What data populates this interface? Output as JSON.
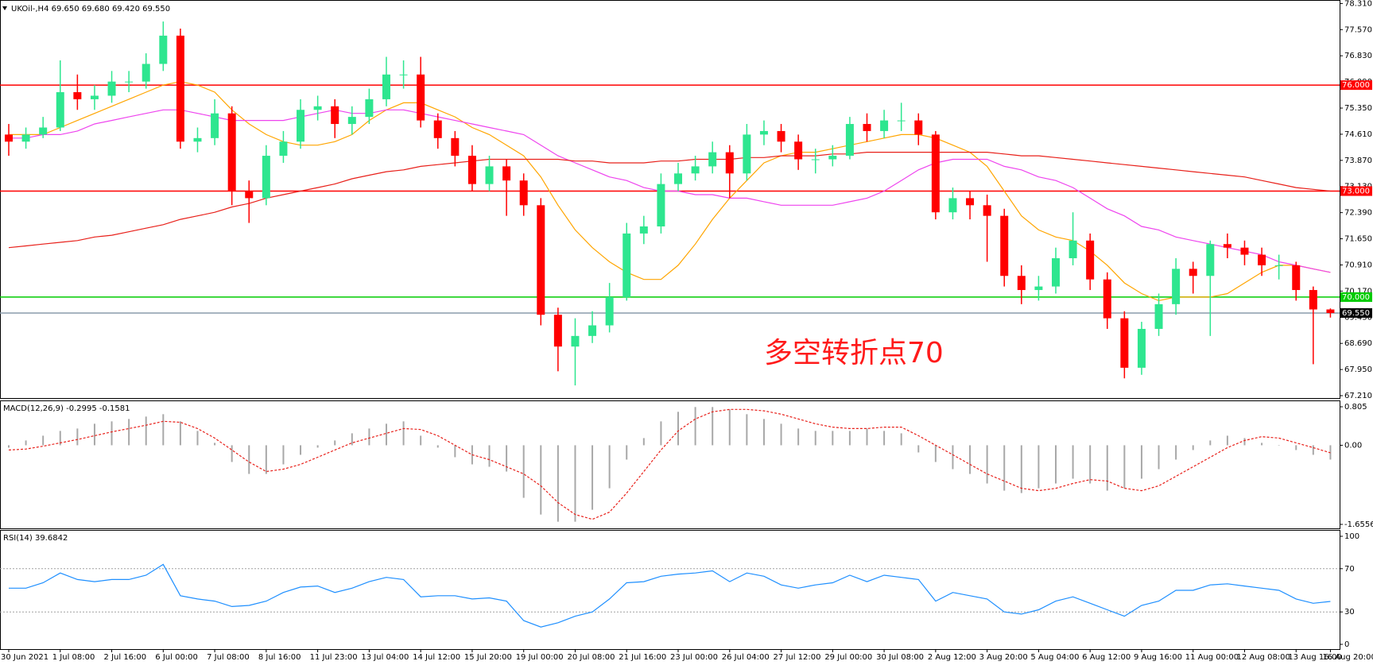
{
  "chart_data": [
    {
      "type": "candlestick",
      "title": "UKOil-,H4 69.650 69.680 69.420 69.550",
      "annotation": "多空转折点70",
      "annotation_color": "#ff1a1a",
      "up_color": "#2ee68f",
      "down_color": "#ff0000",
      "categories": [
        "30 Jun 2021",
        null,
        null,
        "1 Jul 08:00",
        null,
        null,
        "2 Jul 16:00",
        null,
        null,
        "6 Jul 00:00",
        null,
        null,
        "7 Jul 08:00",
        null,
        null,
        "8 Jul 16:00",
        null,
        null,
        "11 Jul 23:00",
        null,
        null,
        "13 Jul 04:00",
        null,
        null,
        "14 Jul 12:00",
        null,
        null,
        "15 Jul 20:00",
        null,
        null,
        "19 Jul 00:00",
        null,
        null,
        "20 Jul 08:00",
        null,
        null,
        "21 Jul 16:00",
        null,
        null,
        "23 Jul 00:00",
        null,
        null,
        "26 Jul 04:00",
        null,
        null,
        "27 Jul 12:00",
        null,
        null,
        "29 Jul 00:00",
        null,
        null,
        "30 Jul 08:00",
        null,
        null,
        "2 Aug 12:00",
        null,
        null,
        "3 Aug 20:00",
        null,
        null,
        "5 Aug 04:00",
        null,
        null,
        "6 Aug 12:00",
        null,
        null,
        "9 Aug 16:00",
        null,
        null,
        "11 Aug 00:00",
        null,
        null,
        "12 Aug 08:00",
        null,
        null,
        "13 Aug 16:00",
        null,
        "16 Aug 20:00"
      ],
      "open": [
        74.6,
        74.4,
        74.6,
        74.8,
        75.8,
        75.6,
        75.7,
        76.1,
        76.1,
        76.6,
        77.4,
        74.4,
        74.5,
        75.2,
        73.0,
        72.8,
        74.0,
        74.4,
        75.3,
        75.4,
        74.9,
        75.1,
        75.6,
        76.3,
        76.3,
        75.0,
        74.5,
        74.0,
        73.2,
        73.7,
        73.3,
        72.6,
        69.5,
        68.6,
        68.9,
        69.2,
        70.0,
        71.8,
        72.0,
        73.2,
        73.5,
        73.7,
        74.1,
        73.5,
        74.6,
        74.7,
        74.4,
        73.9,
        73.9,
        74.0,
        74.9,
        74.7,
        75.0,
        75.0,
        74.6,
        72.4,
        72.8,
        72.6,
        72.3,
        70.6,
        70.2,
        70.3,
        71.1,
        71.6,
        70.5,
        69.4,
        68.0,
        69.1,
        69.8,
        70.8,
        70.6,
        71.5,
        71.4,
        71.2,
        70.9,
        70.9,
        70.2,
        69.65
      ],
      "high": [
        74.9,
        74.8,
        75.1,
        76.7,
        76.3,
        76.0,
        76.4,
        76.4,
        76.9,
        77.8,
        77.6,
        74.8,
        75.6,
        75.4,
        73.3,
        74.3,
        74.7,
        75.6,
        75.7,
        75.6,
        75.4,
        75.9,
        76.8,
        76.7,
        76.8,
        75.2,
        74.7,
        74.3,
        74.0,
        73.9,
        73.5,
        72.8,
        69.7,
        69.4,
        69.6,
        70.4,
        72.1,
        72.3,
        73.5,
        73.8,
        74.0,
        74.4,
        74.3,
        74.9,
        75.0,
        74.9,
        74.6,
        74.2,
        74.3,
        75.1,
        75.2,
        75.3,
        75.5,
        75.2,
        74.7,
        73.1,
        73.0,
        72.9,
        72.5,
        70.9,
        70.6,
        71.4,
        72.4,
        71.8,
        70.7,
        69.6,
        69.3,
        70.1,
        71.1,
        71.0,
        71.6,
        71.8,
        71.6,
        71.4,
        71.2,
        71.0,
        70.3,
        69.68
      ],
      "low": [
        74.0,
        74.2,
        74.5,
        74.7,
        75.3,
        75.3,
        75.5,
        75.8,
        75.9,
        76.4,
        74.2,
        74.1,
        74.3,
        72.6,
        72.1,
        72.6,
        73.8,
        74.2,
        75.0,
        74.5,
        74.6,
        74.9,
        75.4,
        75.9,
        74.8,
        74.2,
        73.7,
        73.0,
        73.0,
        72.3,
        72.3,
        69.2,
        67.9,
        67.5,
        68.7,
        69.0,
        69.9,
        71.5,
        71.8,
        73.0,
        73.3,
        73.5,
        72.8,
        73.3,
        74.3,
        74.1,
        73.6,
        73.5,
        73.7,
        73.9,
        74.4,
        74.5,
        74.7,
        74.3,
        72.2,
        72.2,
        72.2,
        71.0,
        70.3,
        69.8,
        69.9,
        70.1,
        70.9,
        70.2,
        69.1,
        67.7,
        67.8,
        68.9,
        69.5,
        70.1,
        68.9,
        71.1,
        70.9,
        70.6,
        70.5,
        69.9,
        68.1,
        69.42
      ],
      "close": [
        74.4,
        74.6,
        74.8,
        75.8,
        75.6,
        75.7,
        76.1,
        76.1,
        76.6,
        77.4,
        74.4,
        74.5,
        75.2,
        73.0,
        72.8,
        74.0,
        74.4,
        75.3,
        75.4,
        74.9,
        75.1,
        75.6,
        76.3,
        76.3,
        75.0,
        74.5,
        74.0,
        73.2,
        73.7,
        73.3,
        72.6,
        69.5,
        68.6,
        68.9,
        69.2,
        70.0,
        71.8,
        72.0,
        73.2,
        73.5,
        73.7,
        74.1,
        73.5,
        74.6,
        74.7,
        74.4,
        73.9,
        73.9,
        74.0,
        74.9,
        74.7,
        75.0,
        75.0,
        74.6,
        72.4,
        72.8,
        72.6,
        72.3,
        70.6,
        70.2,
        70.3,
        71.1,
        71.6,
        70.5,
        69.4,
        68.0,
        69.1,
        69.8,
        70.8,
        70.6,
        71.5,
        71.4,
        71.2,
        70.9,
        70.9,
        70.2,
        69.65,
        69.55
      ],
      "lines": [
        {
          "color": "#ffa500",
          "values": [
            74.6,
            74.6,
            74.6,
            74.8,
            75.0,
            75.2,
            75.4,
            75.6,
            75.8,
            76.0,
            76.1,
            76.0,
            75.8,
            75.3,
            74.9,
            74.6,
            74.4,
            74.3,
            74.3,
            74.4,
            74.6,
            75.0,
            75.3,
            75.5,
            75.5,
            75.3,
            75.1,
            74.8,
            74.6,
            74.3,
            74.0,
            73.4,
            72.6,
            71.9,
            71.4,
            71.0,
            70.7,
            70.5,
            70.5,
            70.9,
            71.5,
            72.2,
            72.8,
            73.3,
            73.8,
            74.0,
            74.1,
            74.1,
            74.2,
            74.3,
            74.4,
            74.5,
            74.6,
            74.6,
            74.5,
            74.3,
            74.1,
            73.7,
            73.0,
            72.3,
            71.9,
            71.7,
            71.6,
            71.3,
            70.9,
            70.4,
            70.1,
            69.9,
            70.0,
            70.0,
            70.0,
            70.1,
            70.4,
            70.7,
            70.9,
            70.9,
            70.8,
            70.7
          ]
        },
        {
          "color": "#ee44ee",
          "values": [
            74.5,
            74.5,
            74.6,
            74.6,
            74.7,
            74.9,
            75.0,
            75.1,
            75.2,
            75.3,
            75.3,
            75.2,
            75.1,
            75.0,
            75.0,
            75.0,
            75.0,
            75.1,
            75.2,
            75.3,
            75.2,
            75.2,
            75.3,
            75.3,
            75.2,
            75.1,
            75.0,
            74.9,
            74.8,
            74.7,
            74.6,
            74.3,
            74.0,
            73.8,
            73.6,
            73.4,
            73.3,
            73.1,
            73.0,
            73.0,
            72.9,
            72.9,
            72.8,
            72.8,
            72.7,
            72.6,
            72.6,
            72.6,
            72.6,
            72.7,
            72.8,
            73.0,
            73.3,
            73.6,
            73.8,
            73.9,
            73.9,
            73.9,
            73.7,
            73.6,
            73.4,
            73.3,
            73.1,
            72.8,
            72.5,
            72.3,
            72.0,
            71.9,
            71.7,
            71.6,
            71.5,
            71.4,
            71.3,
            71.2,
            71.0,
            70.9,
            70.8,
            70.7
          ]
        },
        {
          "color": "#e8201a",
          "values": [
            71.4,
            71.45,
            71.5,
            71.55,
            71.6,
            71.7,
            71.75,
            71.85,
            71.95,
            72.05,
            72.2,
            72.3,
            72.4,
            72.55,
            72.65,
            72.8,
            72.9,
            73.0,
            73.1,
            73.2,
            73.35,
            73.45,
            73.55,
            73.6,
            73.7,
            73.75,
            73.8,
            73.85,
            73.9,
            73.9,
            73.9,
            73.9,
            73.9,
            73.85,
            73.85,
            73.8,
            73.8,
            73.8,
            73.85,
            73.85,
            73.9,
            73.9,
            73.9,
            73.95,
            73.95,
            74.0,
            74.0,
            74.0,
            74.05,
            74.05,
            74.1,
            74.1,
            74.1,
            74.1,
            74.1,
            74.1,
            74.1,
            74.1,
            74.05,
            74.0,
            74.0,
            73.95,
            73.9,
            73.85,
            73.8,
            73.75,
            73.7,
            73.65,
            73.6,
            73.55,
            73.5,
            73.45,
            73.4,
            73.3,
            73.2,
            73.1,
            73.05,
            73.0
          ]
        }
      ],
      "levels": [
        {
          "value": 76,
          "label": "76.000",
          "color": "#ff0000",
          "label_background": "#ff0000"
        },
        {
          "value": 73,
          "label": "73.000",
          "color": "#ff0000",
          "label_background": "#ff0000"
        },
        {
          "value": 70,
          "label": "70.000",
          "color": "#00cc00",
          "label_background": "#00cc00"
        },
        {
          "value": 69.55,
          "label": "69.550",
          "color": "#8a9bab",
          "label_background": "#000000"
        }
      ],
      "ylim": [
        67.21,
        78.31
      ],
      "yticks": [
        {
          "value": 78.31,
          "label": "78.310"
        },
        {
          "value": 77.57,
          "label": "77.570"
        },
        {
          "value": 76.83,
          "label": "76.830"
        },
        {
          "value": 76.09,
          "label": "76.090"
        },
        {
          "value": 75.35,
          "label": "75.350"
        },
        {
          "value": 74.61,
          "label": "74.610"
        },
        {
          "value": 73.87,
          "label": "73.870"
        },
        {
          "value": 73.13,
          "label": "73.130"
        },
        {
          "value": 72.39,
          "label": "72.390"
        },
        {
          "value": 71.65,
          "label": "71.650"
        },
        {
          "value": 70.91,
          "label": "70.910"
        },
        {
          "value": 70.17,
          "label": "70.170"
        },
        {
          "value": 69.43,
          "label": "69.430"
        },
        {
          "value": 68.69,
          "label": "68.690"
        },
        {
          "value": 67.95,
          "label": "67.950"
        },
        {
          "value": 67.21,
          "label": "67.210"
        }
      ],
      "grid": false
    },
    {
      "type": "macd",
      "title": "MACD(12,26,9) -0.2995 -0.1581",
      "histogram_color": "#a8a8a8",
      "signal_color": "#e8201a",
      "histogram": [
        -0.05,
        0.1,
        0.2,
        0.3,
        0.35,
        0.45,
        0.5,
        0.55,
        0.6,
        0.65,
        0.5,
        0.3,
        0.05,
        -0.35,
        -0.6,
        -0.6,
        -0.4,
        -0.2,
        -0.05,
        0.1,
        0.25,
        0.35,
        0.45,
        0.5,
        0.2,
        -0.05,
        -0.25,
        -0.4,
        -0.45,
        -0.55,
        -1.1,
        -1.45,
        -1.6,
        -1.6,
        -1.35,
        -0.9,
        -0.3,
        0.15,
        0.5,
        0.7,
        0.8,
        0.8,
        0.75,
        0.65,
        0.55,
        0.45,
        0.35,
        0.3,
        0.3,
        0.3,
        0.35,
        0.3,
        0.25,
        -0.15,
        -0.35,
        -0.5,
        -0.6,
        -0.8,
        -0.95,
        -1.0,
        -0.9,
        -0.8,
        -0.7,
        -0.8,
        -0.95,
        -0.9,
        -0.7,
        -0.5,
        -0.3,
        -0.1,
        0.1,
        0.2,
        0.15,
        0.05,
        0.0,
        -0.1,
        -0.2,
        -0.2995
      ],
      "signal": [
        -0.1,
        -0.08,
        -0.02,
        0.05,
        0.12,
        0.2,
        0.28,
        0.35,
        0.42,
        0.5,
        0.48,
        0.35,
        0.15,
        -0.1,
        -0.35,
        -0.55,
        -0.5,
        -0.4,
        -0.25,
        -0.1,
        0.05,
        0.15,
        0.25,
        0.35,
        0.33,
        0.2,
        0.0,
        -0.2,
        -0.3,
        -0.45,
        -0.6,
        -0.85,
        -1.2,
        -1.45,
        -1.55,
        -1.4,
        -1.0,
        -0.55,
        -0.1,
        0.3,
        0.55,
        0.7,
        0.75,
        0.75,
        0.72,
        0.65,
        0.55,
        0.45,
        0.38,
        0.35,
        0.35,
        0.38,
        0.38,
        0.2,
        0.0,
        -0.2,
        -0.4,
        -0.6,
        -0.75,
        -0.9,
        -0.95,
        -0.9,
        -0.8,
        -0.72,
        -0.75,
        -0.9,
        -0.95,
        -0.85,
        -0.65,
        -0.45,
        -0.25,
        -0.05,
        0.1,
        0.18,
        0.15,
        0.05,
        -0.05,
        -0.1581
      ],
      "ylim": [
        -1.6556,
        0.805
      ],
      "yticks": [
        0.805,
        {
          "value": 0,
          "label": "0.00"
        },
        -1.6556
      ],
      "grid": false
    },
    {
      "type": "line",
      "title": "RSI(14) 39.6842",
      "color": "#1e8fff",
      "values": [
        52,
        52,
        57,
        66,
        60,
        58,
        60,
        60,
        64,
        74,
        45,
        42,
        40,
        35,
        36,
        40,
        48,
        53,
        54,
        48,
        52,
        58,
        62,
        60,
        44,
        45,
        45,
        42,
        43,
        40,
        22,
        16,
        20,
        26,
        30,
        42,
        57,
        58,
        63,
        65,
        66,
        68,
        58,
        66,
        63,
        55,
        52,
        55,
        57,
        64,
        58,
        64,
        62,
        60,
        40,
        48,
        45,
        42,
        30,
        28,
        32,
        40,
        44,
        38,
        32,
        26,
        36,
        40,
        50,
        50,
        55,
        56,
        54,
        52,
        50,
        42,
        38,
        39.6842
      ],
      "ylim": [
        0,
        100
      ],
      "yticks": [
        100,
        70,
        30,
        0
      ],
      "grid": true
    }
  ]
}
